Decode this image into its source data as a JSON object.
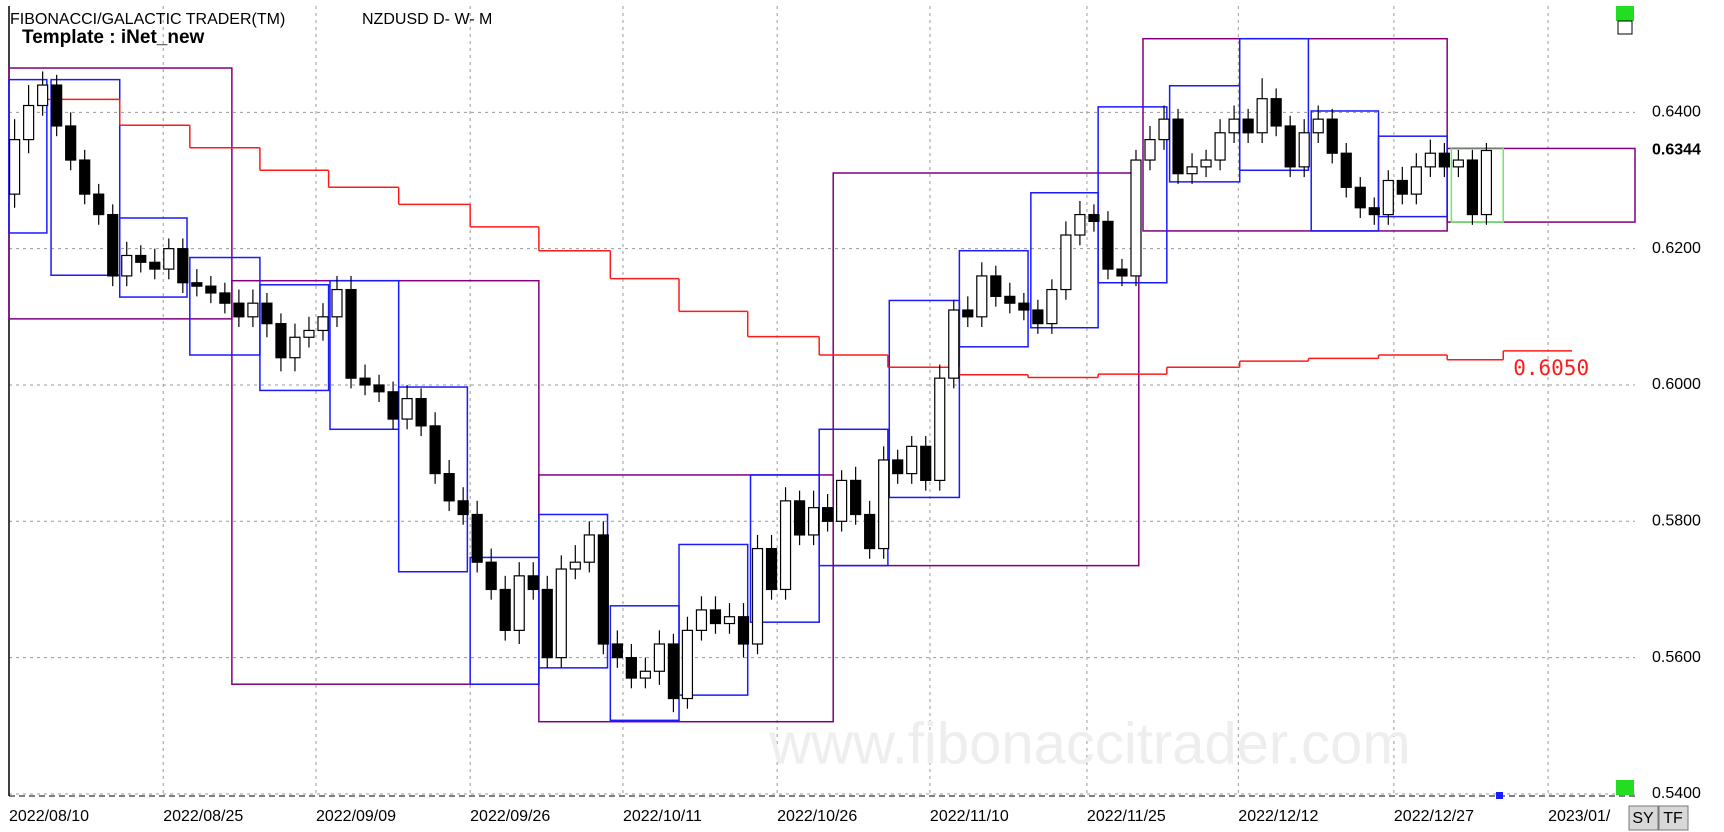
{
  "chart_data": {
    "type": "candlestick",
    "title": "FIBONACCI/GALACTIC TRADER(TM)",
    "subtitle": "NZDUSD D- W- M",
    "template": "Template : iNet_new",
    "watermark": "www.fibonaccitrader.com",
    "buttons": [
      "SY",
      "TF"
    ],
    "xlim": [
      -0.4,
      115.6
    ],
    "ylim": [
      0.5397,
      0.6556
    ],
    "xticks": [
      {
        "value": -0.4,
        "label": "2022/08/10"
      },
      {
        "value": 10.6,
        "label": "2022/08/25"
      },
      {
        "value": 21.5,
        "label": "2022/09/09"
      },
      {
        "value": 32.5,
        "label": "2022/09/26"
      },
      {
        "value": 43.4,
        "label": "2022/10/11"
      },
      {
        "value": 54.4,
        "label": "2022/10/26"
      },
      {
        "value": 65.3,
        "label": "2022/11/10"
      },
      {
        "value": 76.5,
        "label": "2022/11/25"
      },
      {
        "value": 87.3,
        "label": "2022/12/12"
      },
      {
        "value": 98.4,
        "label": "2022/12/27"
      },
      {
        "value": 109.4,
        "label": "2023/01/"
      }
    ],
    "yticks": [
      {
        "value": 0.54,
        "label": "0.5400"
      },
      {
        "value": 0.56,
        "label": "0.5600"
      },
      {
        "value": 0.58,
        "label": "0.5800"
      },
      {
        "value": 0.6,
        "label": "0.6000"
      },
      {
        "value": 0.62,
        "label": "0.6200"
      },
      {
        "value": 0.64,
        "label": "0.6400"
      }
    ],
    "grid": true,
    "last_price": 0.6344,
    "up_color": "#ffffff",
    "down_color": "#000000",
    "open": [
      0.628,
      0.636,
      0.641,
      0.644,
      0.638,
      0.633,
      0.628,
      0.625,
      0.616,
      0.619,
      0.618,
      0.617,
      0.62,
      0.615,
      0.6145,
      0.6135,
      0.612,
      0.61,
      0.612,
      0.609,
      0.604,
      0.607,
      0.608,
      0.61,
      0.614,
      0.601,
      0.6,
      0.599,
      0.595,
      0.598,
      0.594,
      0.587,
      0.583,
      0.581,
      0.574,
      0.57,
      0.564,
      0.572,
      0.57,
      0.56,
      0.573,
      0.574,
      0.578,
      0.562,
      0.56,
      0.557,
      0.558,
      0.562,
      0.554,
      0.564,
      0.567,
      0.565,
      0.566,
      0.562,
      0.576,
      0.57,
      0.583,
      0.578,
      0.582,
      0.58,
      0.586,
      0.581,
      0.576,
      0.589,
      0.587,
      0.591,
      0.586,
      0.601,
      0.611,
      0.61,
      0.616,
      0.613,
      0.612,
      0.611,
      0.609,
      0.614,
      0.622,
      0.625,
      0.624,
      0.617,
      0.616,
      0.633,
      0.636,
      0.639,
      0.631,
      0.632,
      0.633,
      0.637,
      0.639,
      0.637,
      0.642,
      0.638,
      0.632,
      0.637,
      0.639,
      0.634,
      0.629,
      0.626,
      0.625,
      0.63,
      0.628,
      0.632,
      0.634,
      0.632,
      0.633,
      0.625
    ],
    "high": [
      0.639,
      0.644,
      0.646,
      0.6455,
      0.64,
      0.6345,
      0.6295,
      0.6265,
      0.621,
      0.6205,
      0.62,
      0.6215,
      0.6215,
      0.617,
      0.616,
      0.615,
      0.614,
      0.614,
      0.6135,
      0.6105,
      0.609,
      0.61,
      0.612,
      0.616,
      0.616,
      0.603,
      0.6015,
      0.6005,
      0.6,
      0.5995,
      0.596,
      0.589,
      0.585,
      0.583,
      0.576,
      0.572,
      0.574,
      0.574,
      0.572,
      0.575,
      0.5765,
      0.58,
      0.58,
      0.564,
      0.562,
      0.56,
      0.564,
      0.5635,
      0.566,
      0.569,
      0.569,
      0.568,
      0.568,
      0.578,
      0.578,
      0.585,
      0.5845,
      0.5845,
      0.584,
      0.5875,
      0.588,
      0.583,
      0.591,
      0.5905,
      0.5925,
      0.5925,
      0.603,
      0.6125,
      0.613,
      0.618,
      0.6175,
      0.615,
      0.6135,
      0.6125,
      0.6155,
      0.624,
      0.627,
      0.6265,
      0.6255,
      0.6185,
      0.6345,
      0.638,
      0.641,
      0.6405,
      0.634,
      0.6345,
      0.639,
      0.641,
      0.6405,
      0.645,
      0.6435,
      0.6395,
      0.639,
      0.641,
      0.6405,
      0.6355,
      0.6305,
      0.6275,
      0.6315,
      0.632,
      0.634,
      0.636,
      0.6355,
      0.6345,
      0.6345,
      0.6355
    ],
    "low": [
      0.626,
      0.634,
      0.6395,
      0.6365,
      0.6315,
      0.6265,
      0.6235,
      0.6145,
      0.6145,
      0.6165,
      0.6155,
      0.6155,
      0.6135,
      0.613,
      0.612,
      0.6105,
      0.6085,
      0.6085,
      0.607,
      0.602,
      0.602,
      0.6055,
      0.6065,
      0.6085,
      0.5995,
      0.5985,
      0.5975,
      0.5935,
      0.5935,
      0.5925,
      0.5855,
      0.5815,
      0.5795,
      0.5725,
      0.5685,
      0.5625,
      0.562,
      0.5685,
      0.5585,
      0.5585,
      0.5715,
      0.5725,
      0.5605,
      0.5585,
      0.5555,
      0.5555,
      0.556,
      0.552,
      0.5525,
      0.5625,
      0.5635,
      0.5635,
      0.56,
      0.5605,
      0.5685,
      0.5685,
      0.5765,
      0.5765,
      0.5785,
      0.5785,
      0.5795,
      0.5745,
      0.5745,
      0.5855,
      0.5855,
      0.5845,
      0.5845,
      0.5995,
      0.6085,
      0.6085,
      0.6115,
      0.6105,
      0.6095,
      0.6075,
      0.6075,
      0.6125,
      0.6205,
      0.6225,
      0.6155,
      0.6145,
      0.6145,
      0.6315,
      0.6345,
      0.6295,
      0.6295,
      0.6305,
      0.6315,
      0.6355,
      0.6355,
      0.6355,
      0.6365,
      0.6305,
      0.6305,
      0.6355,
      0.6325,
      0.6275,
      0.6245,
      0.6235,
      0.6235,
      0.6265,
      0.6265,
      0.6305,
      0.6305,
      0.6305,
      0.6235,
      0.6235
    ],
    "close": [
      0.636,
      0.641,
      0.644,
      0.638,
      0.633,
      0.628,
      0.625,
      0.616,
      0.619,
      0.618,
      0.617,
      0.62,
      0.615,
      0.6145,
      0.6135,
      0.612,
      0.61,
      0.612,
      0.609,
      0.604,
      0.607,
      0.608,
      0.61,
      0.614,
      0.601,
      0.6,
      0.599,
      0.595,
      0.598,
      0.594,
      0.587,
      0.583,
      0.581,
      0.574,
      0.57,
      0.564,
      0.572,
      0.57,
      0.56,
      0.573,
      0.574,
      0.578,
      0.562,
      0.56,
      0.557,
      0.558,
      0.562,
      0.554,
      0.564,
      0.567,
      0.565,
      0.566,
      0.562,
      0.576,
      0.57,
      0.583,
      0.578,
      0.582,
      0.58,
      0.586,
      0.581,
      0.576,
      0.589,
      0.587,
      0.591,
      0.586,
      0.601,
      0.611,
      0.61,
      0.616,
      0.613,
      0.612,
      0.611,
      0.609,
      0.614,
      0.622,
      0.625,
      0.624,
      0.617,
      0.616,
      0.633,
      0.636,
      0.639,
      0.631,
      0.632,
      0.633,
      0.637,
      0.639,
      0.637,
      0.642,
      0.638,
      0.632,
      0.637,
      0.639,
      0.634,
      0.629,
      0.626,
      0.625,
      0.63,
      0.628,
      0.632,
      0.634,
      0.632,
      0.633,
      0.625,
      0.6344
    ],
    "box_sets": [
      {
        "color": "#800080",
        "boxes": [
          [
            -0.4,
            15.5,
            0.6465,
            0.6097
          ],
          [
            15.5,
            37.4,
            0.6153,
            0.5561
          ],
          [
            37.4,
            58.4,
            0.5868,
            0.5506
          ],
          [
            58.4,
            80.2,
            0.6311,
            0.5735
          ],
          [
            80.5,
            102.2,
            0.6508,
            0.6226
          ],
          [
            102.2,
            115.6,
            0.6347,
            0.6239
          ]
        ]
      },
      {
        "color": "#1a1aff",
        "boxes": [
          [
            -0.4,
            2.3,
            0.6448,
            0.6223
          ],
          [
            2.6,
            7.5,
            0.6448,
            0.6161
          ],
          [
            7.5,
            12.3,
            0.6245,
            0.6129
          ],
          [
            12.5,
            17.5,
            0.6187,
            0.6044
          ],
          [
            17.5,
            22.4,
            0.6147,
            0.5992
          ],
          [
            22.5,
            27.4,
            0.6153,
            0.5935
          ],
          [
            27.4,
            32.3,
            0.5997,
            0.5726
          ],
          [
            32.5,
            37.4,
            0.5747,
            0.5561
          ],
          [
            37.4,
            42.3,
            0.581,
            0.5585
          ],
          [
            42.5,
            47.4,
            0.5676,
            0.5508
          ],
          [
            47.4,
            52.3,
            0.5766,
            0.5545
          ],
          [
            52.5,
            57.4,
            0.5868,
            0.5652
          ],
          [
            57.4,
            62.3,
            0.5935,
            0.5735
          ],
          [
            62.4,
            67.4,
            0.6124,
            0.5835
          ],
          [
            67.4,
            72.3,
            0.6197,
            0.6056
          ],
          [
            72.5,
            77.3,
            0.6282,
            0.6084
          ],
          [
            77.3,
            82.2,
            0.6408,
            0.615
          ],
          [
            82.4,
            87.4,
            0.6439,
            0.6298
          ],
          [
            87.4,
            92.3,
            0.6508,
            0.6315
          ],
          [
            92.5,
            97.3,
            0.6402,
            0.6226
          ],
          [
            97.3,
            102.2,
            0.6365,
            0.6247
          ]
        ]
      },
      {
        "color": "#66ee66",
        "boxes": [
          [
            102.5,
            106.2,
            0.6348,
            0.6239
          ]
        ]
      }
    ],
    "step_line": {
      "color": "#ff1a1a",
      "edges": [
        2.2,
        7.5,
        12.5,
        17.5,
        22.4,
        27.4,
        32.5,
        37.4,
        42.5,
        47.4,
        52.3,
        57.4,
        62.3,
        67.4,
        72.3,
        77.3,
        82.2,
        87.4,
        92.3,
        97.3,
        102.2,
        106.2,
        111.1
      ],
      "values": [
        0.6419,
        0.6381,
        0.6348,
        0.6315,
        0.629,
        0.6265,
        0.6232,
        0.6197,
        0.6156,
        0.6108,
        0.6071,
        0.6044,
        0.6026,
        0.6015,
        0.6011,
        0.6016,
        0.6026,
        0.6035,
        0.6039,
        0.6044,
        0.6037,
        0.605
      ],
      "value_labels": {
        "21": "0.6050"
      }
    }
  }
}
